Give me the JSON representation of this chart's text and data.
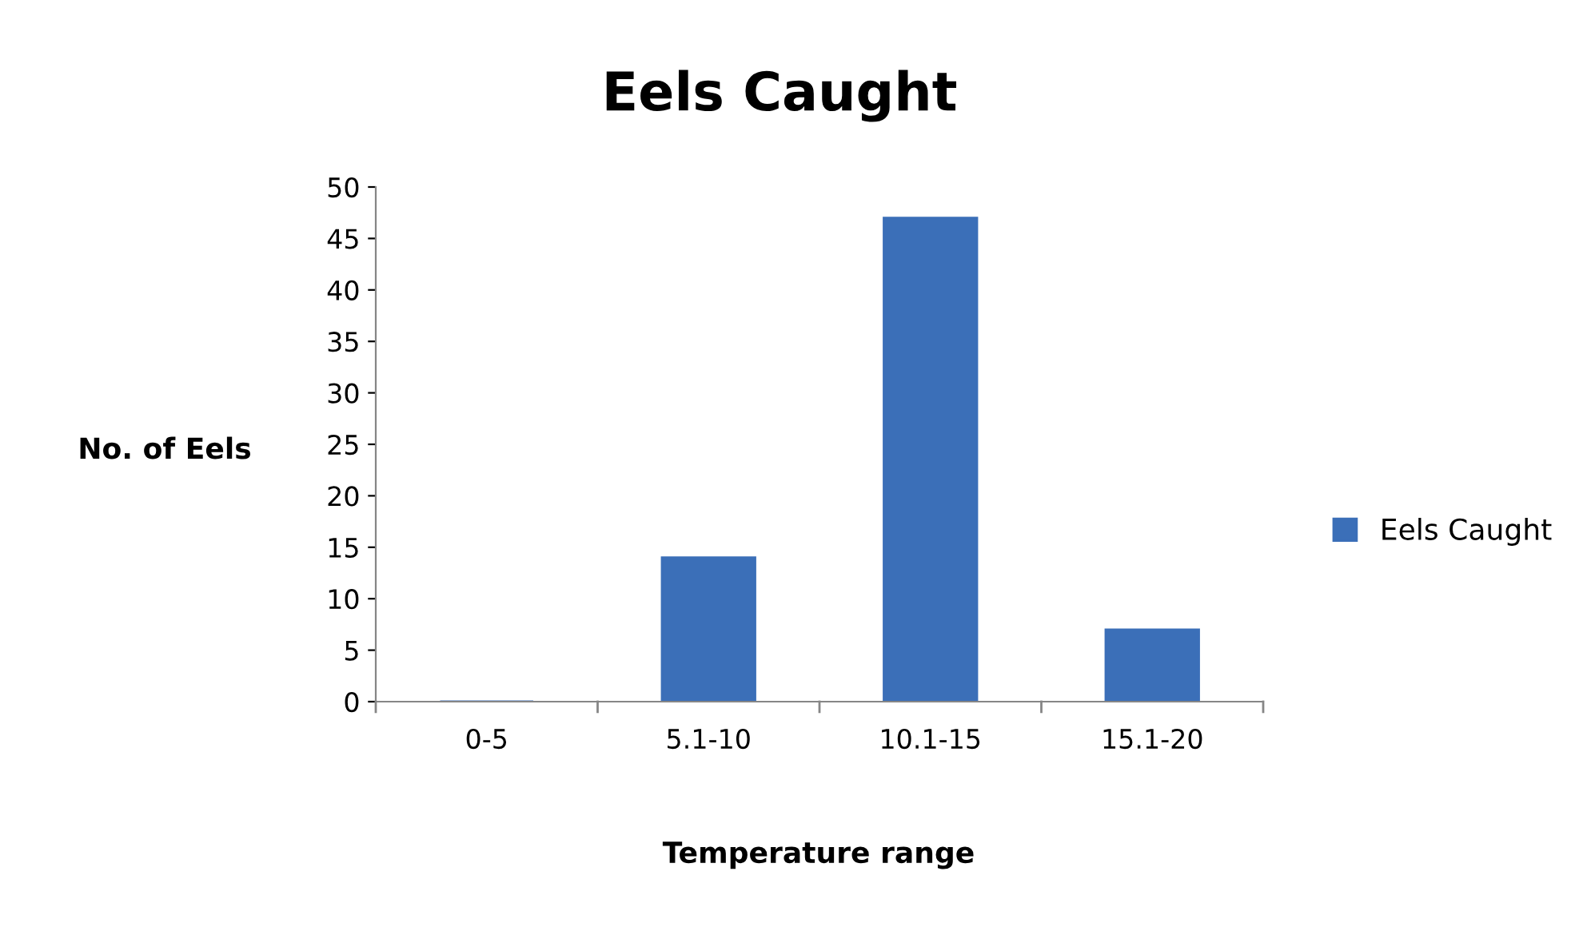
{
  "chart_data": {
    "type": "bar",
    "title": "Eels Caught",
    "xlabel": "Temperature range",
    "ylabel": "No. of Eels",
    "categories": [
      "0-5",
      "5.1-10",
      "10.1-15",
      "15.1-20"
    ],
    "series": [
      {
        "name": "Eels Caught",
        "color": "#3b6fb8",
        "values": [
          0,
          14,
          47,
          7
        ]
      }
    ],
    "ylim": [
      0,
      50
    ],
    "yticks": [
      0,
      5,
      10,
      15,
      20,
      25,
      30,
      35,
      40,
      45,
      50
    ],
    "grid": false,
    "legend": "right"
  }
}
